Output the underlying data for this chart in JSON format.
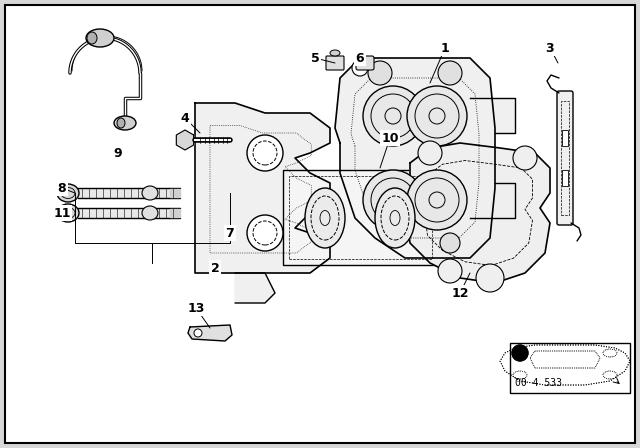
{
  "bg_color": "#e0e0e0",
  "border_color": "#000000",
  "line_color": "#000000",
  "diagram_code": "00 4 533",
  "fig_bg": "#d8d8d8"
}
